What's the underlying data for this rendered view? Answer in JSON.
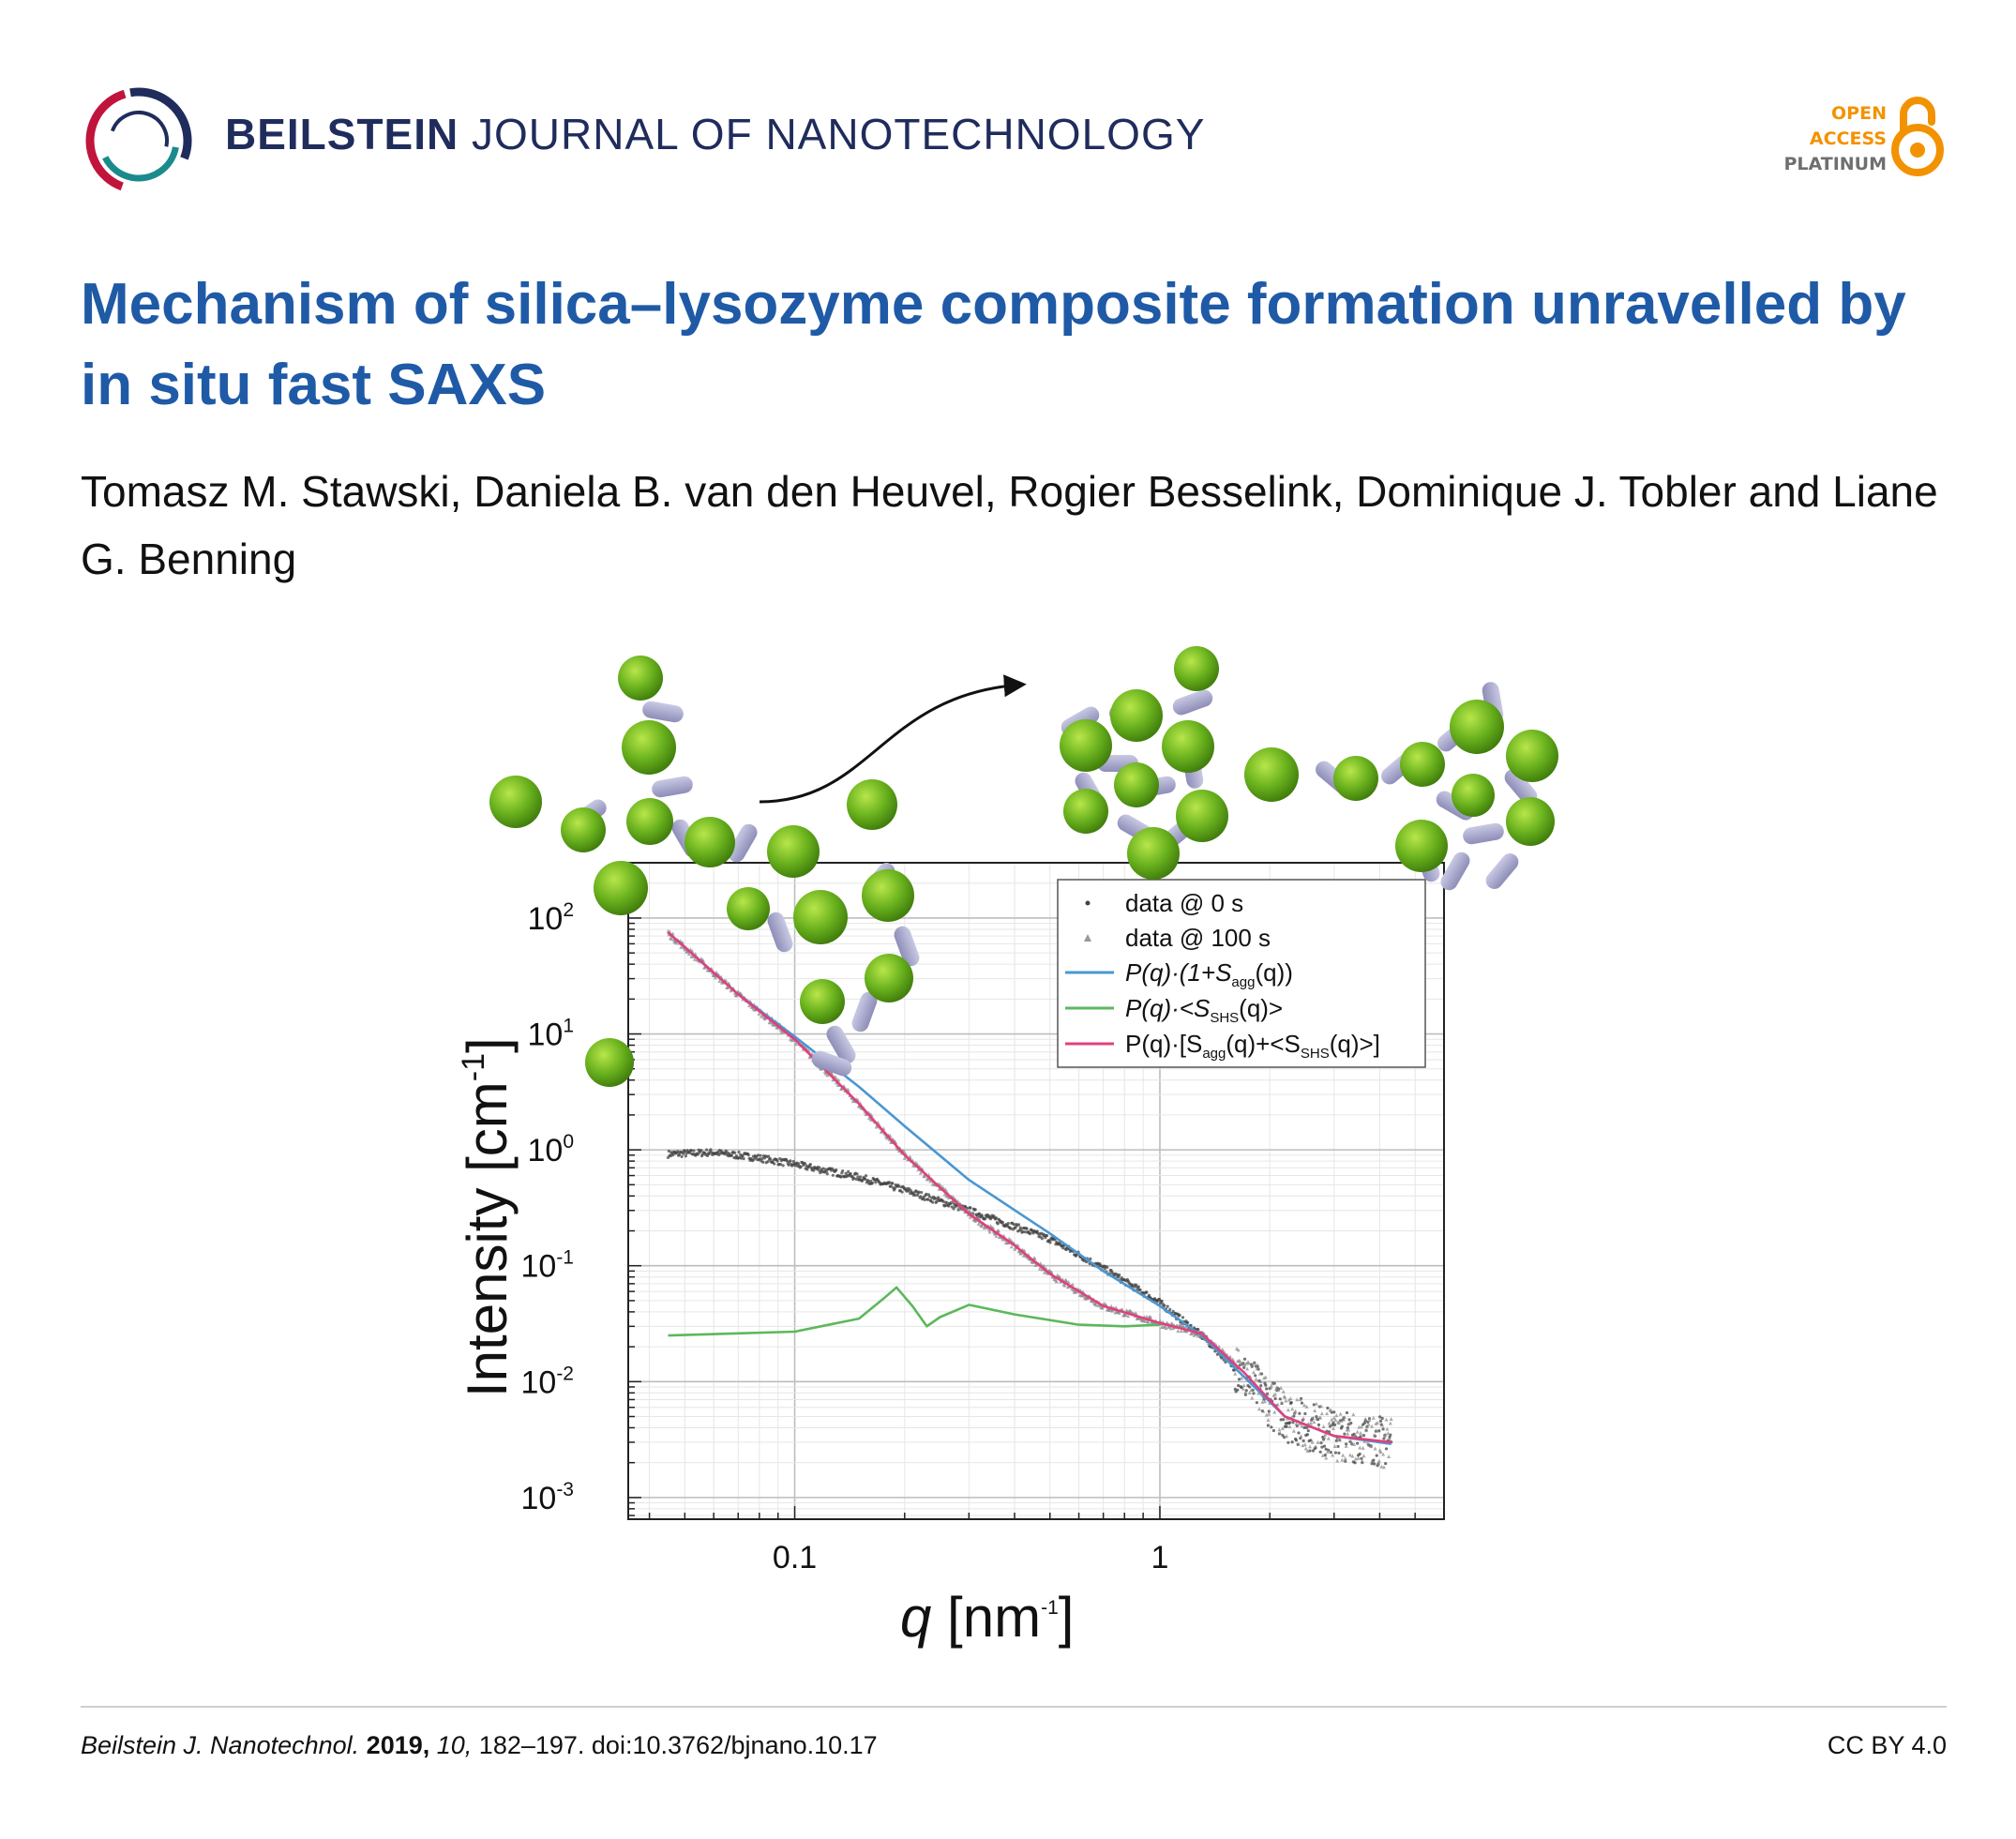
{
  "journal": {
    "name_bold": "BEILSTEIN",
    "name_rest": " JOURNAL OF NANOTECHNOLOGY",
    "oa_line1": "OPEN",
    "oa_line2": "ACCESS",
    "oa_line3": "PLATINUM",
    "colors": {
      "navy": "#1f2c5c",
      "crimson": "#c0143c",
      "teal": "#1b8a8c",
      "orange": "#f39200"
    },
    "icons": [
      "journal-logo-icon",
      "open-access-lock-icon"
    ]
  },
  "article": {
    "title": "Mechanism of silica–lysozyme composite formation unravelled by in situ fast SAXS",
    "authors": "Tomasz M. Stawski, Daniela B. van den Heuvel, Rogier Besselink, Dominique J. Tobler and Liane G. Benning"
  },
  "chart_data": {
    "type": "scatter",
    "xscale": "log",
    "yscale": "log",
    "xlim": [
      0.035,
      6
    ],
    "ylim": [
      0.00065,
      300
    ],
    "grid": true,
    "legend_position": "top-right",
    "xlabel_base": "q [nm",
    "xlabel_sup": "-1",
    "xlabel_end": "]",
    "ylabel_base": "Intensity [cm",
    "ylabel_sup": "-1",
    "ylabel_end": "]",
    "x_ticks": [
      {
        "value": 0.1,
        "label": "0.1"
      },
      {
        "value": 1,
        "label": "1"
      }
    ],
    "y_ticks": [
      {
        "value": 100,
        "base": "10",
        "exp": "2"
      },
      {
        "value": 10,
        "base": "10",
        "exp": "1"
      },
      {
        "value": 1,
        "base": "10",
        "exp": "0"
      },
      {
        "value": 0.1,
        "base": "10",
        "exp": "-1"
      },
      {
        "value": 0.01,
        "base": "10",
        "exp": "-2"
      },
      {
        "value": 0.001,
        "base": "10",
        "exp": "-3"
      }
    ],
    "series": [
      {
        "name": "data @ 0 s",
        "kind": "points",
        "color": "#444444",
        "x": [
          0.045,
          0.06,
          0.08,
          0.1,
          0.15,
          0.2,
          0.3,
          0.5,
          0.7,
          1.0,
          1.3,
          1.7,
          2.2,
          3.0,
          4.3
        ],
        "y": [
          0.92,
          0.95,
          0.85,
          0.75,
          0.58,
          0.45,
          0.3,
          0.17,
          0.095,
          0.048,
          0.025,
          0.011,
          0.005,
          0.0035,
          0.003
        ]
      },
      {
        "name": "data @ 100 s",
        "kind": "points",
        "color": "#888888",
        "x": [
          0.045,
          0.07,
          0.1,
          0.15,
          0.2,
          0.3,
          0.4,
          0.5,
          0.7,
          1.0,
          1.3,
          1.7,
          2.2,
          3.0,
          4.3
        ],
        "y": [
          75,
          22,
          9,
          2.5,
          0.9,
          0.28,
          0.15,
          0.085,
          0.045,
          0.032,
          0.026,
          0.012,
          0.005,
          0.0034,
          0.003
        ]
      },
      {
        "name_parts": [
          "P(q)·(1+S",
          "agg",
          "(q))"
        ],
        "kind": "line",
        "color": "#4a97d2",
        "x": [
          0.045,
          0.07,
          0.1,
          0.15,
          0.2,
          0.3,
          0.5,
          0.7,
          1.0,
          1.3,
          1.7,
          2.2,
          3.0,
          4.3
        ],
        "y": [
          75,
          22,
          9.5,
          3.5,
          1.6,
          0.55,
          0.19,
          0.09,
          0.045,
          0.025,
          0.011,
          0.005,
          0.0034,
          0.0029
        ]
      },
      {
        "name_parts": [
          "P(q)·<S",
          "SHS",
          "(q)>"
        ],
        "kind": "line",
        "color": "#5cb85c",
        "x": [
          0.045,
          0.1,
          0.15,
          0.175,
          0.19,
          0.21,
          0.23,
          0.25,
          0.3,
          0.4,
          0.6,
          0.8,
          1.0
        ],
        "y": [
          0.025,
          0.027,
          0.035,
          0.052,
          0.065,
          0.045,
          0.03,
          0.036,
          0.046,
          0.038,
          0.031,
          0.03,
          0.031
        ]
      },
      {
        "name_parts": [
          "P(q)·[S",
          "agg",
          "(q)+<S",
          "SHS",
          "(q)>]"
        ],
        "kind": "line",
        "color": "#e0407f",
        "x": [
          0.045,
          0.07,
          0.1,
          0.15,
          0.2,
          0.3,
          0.4,
          0.5,
          0.7,
          1.0,
          1.3,
          1.7,
          2.2,
          3.0,
          4.3
        ],
        "y": [
          75,
          22,
          9,
          2.5,
          0.9,
          0.28,
          0.15,
          0.085,
          0.045,
          0.032,
          0.026,
          0.012,
          0.005,
          0.0034,
          0.003
        ]
      }
    ]
  },
  "footer": {
    "journal_abbrev": "Beilstein J. Nanotechnol.",
    "year": " 2019,",
    "volume": " 10,",
    "pages_doi": " 182–197. doi:10.3762/bjnano.10.17",
    "license": "CC BY 4.0"
  }
}
